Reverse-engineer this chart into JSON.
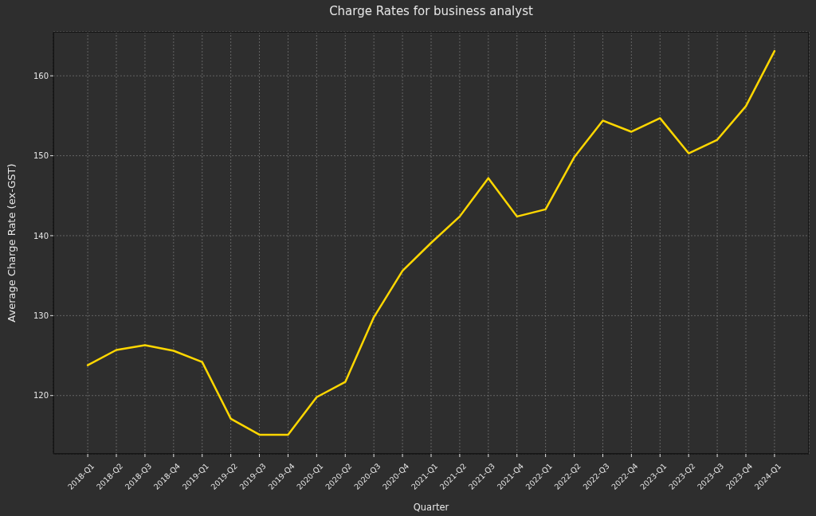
{
  "chart_data": {
    "type": "line",
    "title": "Charge Rates for business analyst",
    "xlabel": "Quarter",
    "ylabel": "Average Charge Rate (ex-GST)",
    "categories": [
      "2018-Q1",
      "2018-Q2",
      "2018-Q3",
      "2018-Q4",
      "2019-Q1",
      "2019-Q2",
      "2019-Q3",
      "2019-Q4",
      "2020-Q1",
      "2020-Q2",
      "2020-Q3",
      "2020-Q4",
      "2021-Q1",
      "2021-Q2",
      "2021-Q3",
      "2021-Q4",
      "2022-Q1",
      "2022-Q2",
      "2022-Q3",
      "2022-Q4",
      "2023-Q1",
      "2023-Q2",
      "2023-Q3",
      "2023-Q4",
      "2024-Q1"
    ],
    "series": [
      {
        "color": "#ffd700",
        "values": [
          123.8,
          125.7,
          126.3,
          125.6,
          124.2,
          117.1,
          115.1,
          115.1,
          119.8,
          121.7,
          129.8,
          135.6,
          139.1,
          142.4,
          147.2,
          142.4,
          143.3,
          149.8,
          154.4,
          153.0,
          154.7,
          150.3,
          152.0,
          156.2,
          163.1
        ]
      }
    ],
    "ylim": [
      112.7,
      165.5
    ],
    "yticks": [
      120,
      130,
      140,
      150,
      160
    ],
    "grid": true
  }
}
